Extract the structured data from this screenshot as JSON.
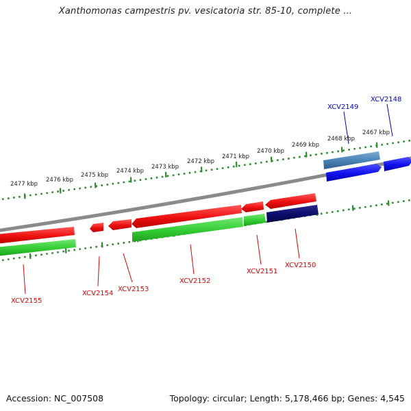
{
  "title": "Xanthomonas campestris pv. vesicatoria str. 85-10, complete ...",
  "footer": {
    "accession": "Accession: NC_007508",
    "summary": "Topology: circular; Length: 5,178,466 bp; Genes: 4,545"
  },
  "colors": {
    "backbone": "#8a8a8a",
    "ruler": "#2e8b2e",
    "red": "#ee1111",
    "green": "#33cc33",
    "navy": "#0b0b6b",
    "blue": "#1111ee",
    "steelblue": "#4682b4",
    "label_red": "#dd0000",
    "label_blue": "#0000cc"
  },
  "ruler_labels": [
    "2477 kbp",
    "2476 kbp",
    "2475 kbp",
    "2474 kbp",
    "2473 kbp",
    "2472 kbp",
    "2471 kbp",
    "2470 kbp",
    "2469 kbp",
    "2468 kbp",
    "2467 kbp"
  ],
  "gene_labels": {
    "xcv2155": "XCV2155",
    "xcv2154": "XCV2154",
    "xcv2153": "XCV2153",
    "xcv2152": "XCV2152",
    "xcv2151": "XCV2151",
    "xcv2150": "XCV2150",
    "xcv2149": "XCV2149",
    "xcv2148": "XCV2148"
  }
}
